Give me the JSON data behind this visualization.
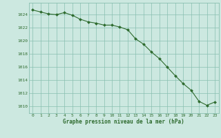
{
  "x": [
    0,
    1,
    2,
    3,
    4,
    5,
    6,
    7,
    8,
    9,
    10,
    11,
    12,
    13,
    14,
    15,
    16,
    17,
    18,
    19,
    20,
    21,
    22,
    23
  ],
  "y": [
    1024.7,
    1024.4,
    1024.1,
    1024.0,
    1024.3,
    1023.9,
    1023.3,
    1022.9,
    1022.7,
    1022.4,
    1022.4,
    1022.1,
    1021.7,
    1020.3,
    1019.5,
    1018.3,
    1017.3,
    1016.0,
    1014.7,
    1013.5,
    1012.5,
    1010.8,
    1010.2,
    1010.7
  ],
  "line_color": "#2d6a2d",
  "marker_color": "#2d6a2d",
  "bg_color": "#cce8e0",
  "grid_color": "#88bfb0",
  "text_color": "#2d6a2d",
  "xlabel": "Graphe pression niveau de la mer (hPa)",
  "ylim": [
    1009.0,
    1025.8
  ],
  "xlim": [
    -0.5,
    23.5
  ],
  "yticks": [
    1010,
    1012,
    1014,
    1016,
    1018,
    1020,
    1022,
    1024
  ],
  "xticks": [
    0,
    1,
    2,
    3,
    4,
    5,
    6,
    7,
    8,
    9,
    10,
    11,
    12,
    13,
    14,
    15,
    16,
    17,
    18,
    19,
    20,
    21,
    22,
    23
  ]
}
